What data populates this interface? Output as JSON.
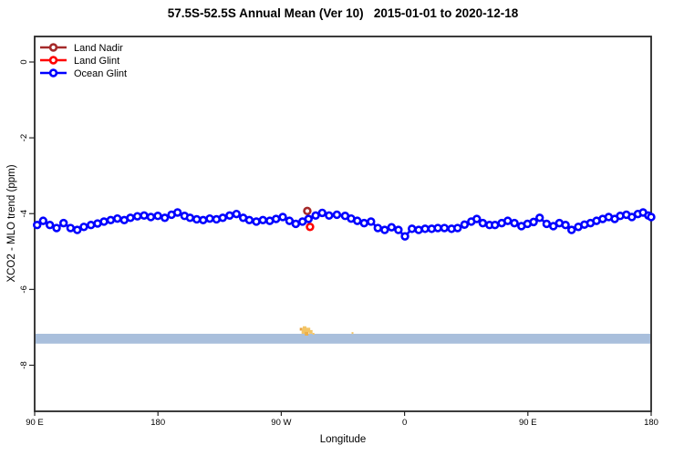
{
  "title": "57.5S-52.5S Annual Mean (Ver 10)   2015-01-01 to 2020-12-18",
  "axes": {
    "x": {
      "label": "Longitude",
      "ticks": [
        {
          "pos": 0,
          "label": "90 E"
        },
        {
          "pos": 90,
          "label": "180"
        },
        {
          "pos": 180,
          "label": "90 W"
        },
        {
          "pos": 270,
          "label": "0"
        },
        {
          "pos": 360,
          "label": "90 E"
        },
        {
          "pos": 450,
          "label": "180"
        }
      ],
      "note": "wrapped longitude axis: 0=90E, 90=180, 180=90W, 270=0, 360=90E, 450=180"
    },
    "y": {
      "label": "XCO2 - MLO trend (ppm)",
      "ticks": [
        {
          "value": 0,
          "label": "0"
        },
        {
          "value": -2,
          "label": "-2"
        },
        {
          "value": -4,
          "label": "-4"
        },
        {
          "value": -6,
          "label": "-6"
        },
        {
          "value": -8,
          "label": "-8"
        }
      ],
      "range": [
        0.7,
        -9.2
      ]
    }
  },
  "legend": {
    "position": "top-left",
    "items": [
      {
        "label": "Land Nadir",
        "color": "#A52A2A"
      },
      {
        "label": "Land Glint",
        "color": "#FF0000"
      },
      {
        "label": "Ocean Glint",
        "color": "#0000FF"
      }
    ]
  },
  "chart_data": {
    "type": "line",
    "x_axis": "degrees along wrapped longitude axis east of 90E (0=90E, 90=180, 180=90W, 270=0, 360=90E, 450=180)",
    "ylabel": "XCO2 - MLO trend (ppm)",
    "ylim": [
      0.7,
      -9.2
    ],
    "grid": false,
    "qc_band": {
      "color": "#A9BFDC",
      "y_top": -7.17,
      "y_bottom": -7.43
    },
    "flagged_points": [
      {
        "t": 194.5,
        "y": -7.05,
        "s": 3,
        "c": "#E8A23E"
      },
      {
        "t": 197.0,
        "y": -7.02,
        "s": 4,
        "c": "#F3C465"
      },
      {
        "t": 196.5,
        "y": -7.11,
        "s": 5,
        "c": "#F3C465"
      },
      {
        "t": 199.5,
        "y": -7.07,
        "s": 5,
        "c": "#F3C465"
      },
      {
        "t": 198.5,
        "y": -7.17,
        "s": 4,
        "c": "#EBAF4A"
      },
      {
        "t": 201.5,
        "y": -7.12,
        "s": 4,
        "c": "#F3C465"
      },
      {
        "t": 203.5,
        "y": -7.17,
        "s": 2,
        "c": "#F3C465"
      },
      {
        "t": 232.0,
        "y": -7.15,
        "s": 2,
        "c": "#F3C465"
      }
    ],
    "series": [
      {
        "name": "Land Nadir",
        "color": "#A52A2A",
        "points": [
          [
            199.0,
            -3.93
          ]
        ]
      },
      {
        "name": "Land Glint",
        "color": "#FF0000",
        "points": [
          [
            201.0,
            -4.35
          ]
        ]
      },
      {
        "name": "Ocean Glint",
        "color": "#0000FF",
        "points": [
          [
            1.8,
            -4.3
          ],
          [
            6.2,
            -4.19
          ],
          [
            11.1,
            -4.3
          ],
          [
            16.0,
            -4.38
          ],
          [
            21.1,
            -4.25
          ],
          [
            26.2,
            -4.38
          ],
          [
            31.1,
            -4.43
          ],
          [
            35.9,
            -4.35
          ],
          [
            41.1,
            -4.3
          ],
          [
            45.9,
            -4.26
          ],
          [
            50.6,
            -4.21
          ],
          [
            55.5,
            -4.17
          ],
          [
            60.4,
            -4.13
          ],
          [
            65.4,
            -4.17
          ],
          [
            69.9,
            -4.11
          ],
          [
            75.0,
            -4.07
          ],
          [
            79.9,
            -4.05
          ],
          [
            84.8,
            -4.09
          ],
          [
            89.9,
            -4.06
          ],
          [
            95.0,
            -4.11
          ],
          [
            99.9,
            -4.03
          ],
          [
            104.3,
            -3.97
          ],
          [
            109.4,
            -4.06
          ],
          [
            113.4,
            -4.11
          ],
          [
            118.3,
            -4.15
          ],
          [
            123.0,
            -4.17
          ],
          [
            127.8,
            -4.13
          ],
          [
            132.7,
            -4.15
          ],
          [
            137.3,
            -4.11
          ],
          [
            142.3,
            -4.05
          ],
          [
            147.3,
            -4.01
          ],
          [
            152.2,
            -4.11
          ],
          [
            156.7,
            -4.17
          ],
          [
            161.8,
            -4.21
          ],
          [
            166.6,
            -4.17
          ],
          [
            171.6,
            -4.19
          ],
          [
            176.2,
            -4.14
          ],
          [
            181.1,
            -4.09
          ],
          [
            186.0,
            -4.19
          ],
          [
            190.6,
            -4.27
          ],
          [
            195.5,
            -4.21
          ],
          [
            199.9,
            -4.14
          ],
          [
            205.1,
            -4.05
          ],
          [
            209.9,
            -3.98
          ],
          [
            214.9,
            -4.05
          ],
          [
            220.6,
            -4.03
          ],
          [
            226.6,
            -4.06
          ],
          [
            231.0,
            -4.13
          ],
          [
            235.5,
            -4.19
          ],
          [
            240.5,
            -4.25
          ],
          [
            245.5,
            -4.21
          ],
          [
            250.5,
            -4.38
          ],
          [
            255.5,
            -4.43
          ],
          [
            260.5,
            -4.36
          ],
          [
            265.5,
            -4.43
          ],
          [
            270.3,
            -4.6
          ],
          [
            275.4,
            -4.4
          ],
          [
            280.3,
            -4.43
          ],
          [
            285.0,
            -4.4
          ],
          [
            289.8,
            -4.4
          ],
          [
            294.3,
            -4.38
          ],
          [
            299.1,
            -4.38
          ],
          [
            304.3,
            -4.4
          ],
          [
            308.7,
            -4.38
          ],
          [
            313.8,
            -4.29
          ],
          [
            318.7,
            -4.21
          ],
          [
            322.7,
            -4.14
          ],
          [
            327.1,
            -4.25
          ],
          [
            332.0,
            -4.3
          ],
          [
            336.0,
            -4.3
          ],
          [
            340.9,
            -4.25
          ],
          [
            345.3,
            -4.19
          ],
          [
            350.2,
            -4.25
          ],
          [
            355.3,
            -4.33
          ],
          [
            359.7,
            -4.27
          ],
          [
            364.2,
            -4.22
          ],
          [
            368.6,
            -4.11
          ],
          [
            373.7,
            -4.27
          ],
          [
            378.6,
            -4.33
          ],
          [
            383.0,
            -4.25
          ],
          [
            387.5,
            -4.3
          ],
          [
            391.9,
            -4.43
          ],
          [
            396.8,
            -4.35
          ],
          [
            401.3,
            -4.29
          ],
          [
            405.7,
            -4.25
          ],
          [
            410.1,
            -4.19
          ],
          [
            414.6,
            -4.14
          ],
          [
            419.0,
            -4.09
          ],
          [
            423.4,
            -4.14
          ],
          [
            427.4,
            -4.06
          ],
          [
            431.9,
            -4.03
          ],
          [
            435.9,
            -4.09
          ],
          [
            440.3,
            -4.01
          ],
          [
            444.1,
            -3.97
          ],
          [
            447.9,
            -4.05
          ],
          [
            450.0,
            -4.09
          ]
        ]
      }
    ]
  }
}
